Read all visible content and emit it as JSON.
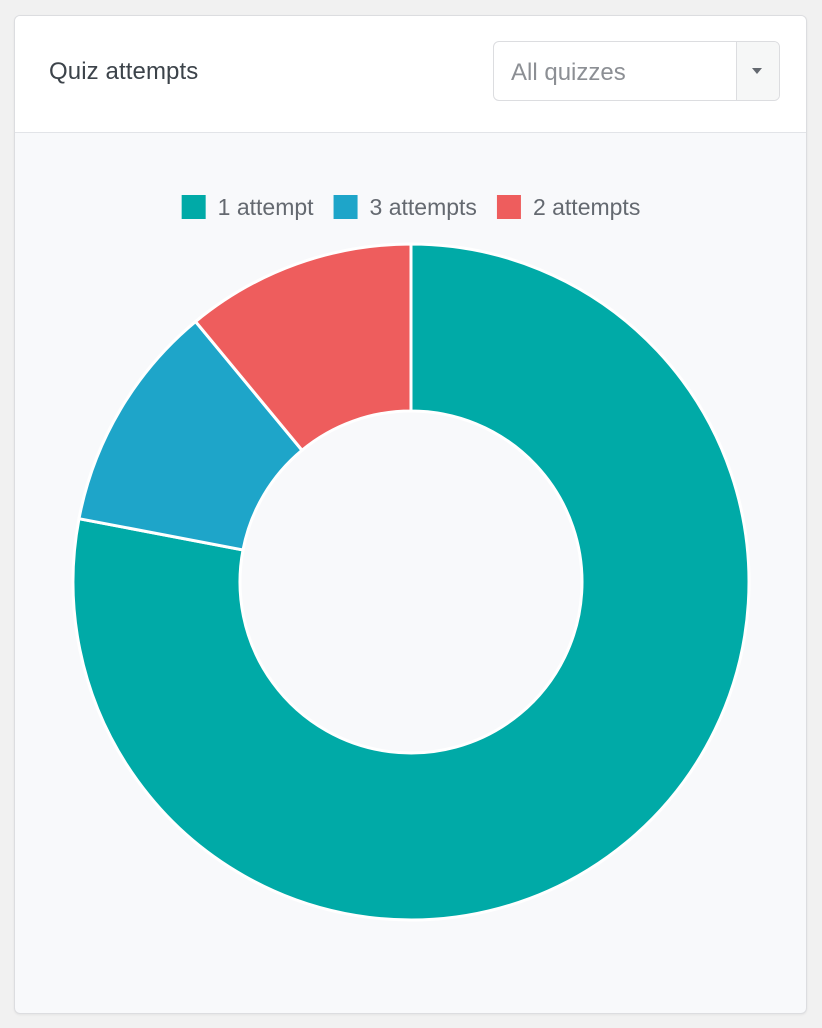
{
  "header": {
    "title": "Quiz attempts"
  },
  "filter": {
    "selected": "All quizzes",
    "icon": "chevron-down-icon"
  },
  "colors": {
    "1 attempt": "#00aaa7",
    "3 attempts": "#1ea5c9",
    "2 attempts": "#ee5d5d"
  },
  "chart_data": {
    "type": "pie",
    "variant": "doughnut",
    "legend_position": "top",
    "categories": [
      "1 attempt",
      "3 attempts",
      "2 attempts"
    ],
    "values": [
      78,
      11,
      11
    ]
  }
}
